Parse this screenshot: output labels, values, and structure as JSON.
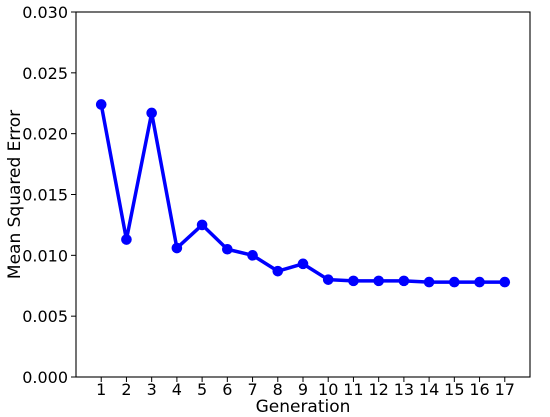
{
  "chart_data": {
    "type": "line",
    "title": "",
    "xlabel": "Generation",
    "ylabel": "Mean Squared Error",
    "x": [
      1,
      2,
      3,
      4,
      5,
      6,
      7,
      8,
      9,
      10,
      11,
      12,
      13,
      14,
      15,
      16,
      17
    ],
    "series": [
      {
        "values": [
          0.0224,
          0.0113,
          0.0217,
          0.0106,
          0.0125,
          0.0105,
          0.01,
          0.0087,
          0.0093,
          0.008,
          0.0079,
          0.0079,
          0.0079,
          0.0078,
          0.0078,
          0.0078,
          0.0078
        ]
      }
    ],
    "xlim": [
      0,
      18
    ],
    "ylim": [
      0,
      0.03
    ],
    "xticks": [
      "1",
      "2",
      "3",
      "4",
      "5",
      "6",
      "7",
      "8",
      "9",
      "10",
      "11",
      "12",
      "13",
      "14",
      "15",
      "16",
      "17"
    ],
    "yticks": [
      "0.000",
      "0.005",
      "0.010",
      "0.015",
      "0.020",
      "0.025",
      "0.030"
    ],
    "grid": false,
    "legend": "none",
    "colors": {
      "series": "#0000ff",
      "axis": "#000000"
    }
  }
}
